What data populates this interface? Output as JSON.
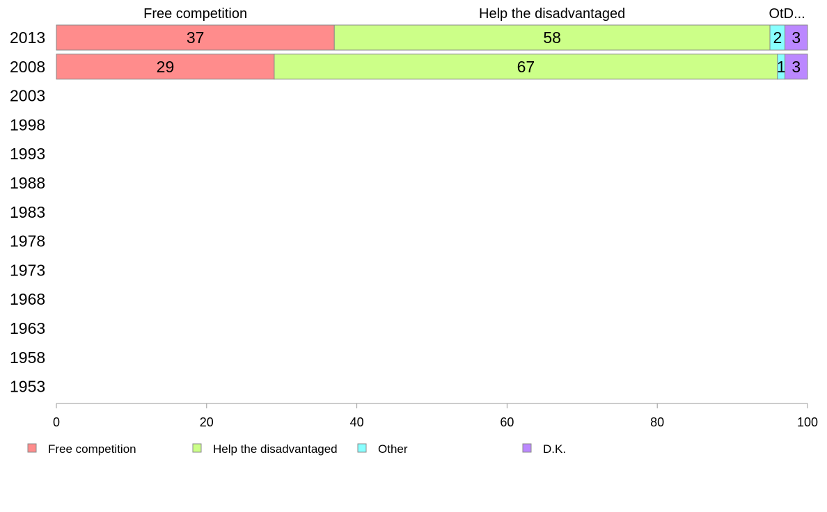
{
  "chart_data": {
    "type": "bar",
    "orientation": "horizontal",
    "stacked": true,
    "categories": [
      "2013",
      "2008",
      "2003",
      "1998",
      "1993",
      "1988",
      "1983",
      "1978",
      "1973",
      "1968",
      "1963",
      "1958",
      "1953"
    ],
    "series": [
      {
        "name": "Free competition",
        "color": "#ff8c8c",
        "values": [
          37,
          29,
          null,
          null,
          null,
          null,
          null,
          null,
          null,
          null,
          null,
          null,
          null
        ]
      },
      {
        "name": "Help the disadvantaged",
        "color": "#ccff88",
        "values": [
          58,
          67,
          null,
          null,
          null,
          null,
          null,
          null,
          null,
          null,
          null,
          null,
          null
        ]
      },
      {
        "name": "Other",
        "color": "#88ffff",
        "values": [
          2,
          1,
          null,
          null,
          null,
          null,
          null,
          null,
          null,
          null,
          null,
          null,
          null
        ]
      },
      {
        "name": "D.K.",
        "color": "#bb88ff",
        "values": [
          3,
          3,
          null,
          null,
          null,
          null,
          null,
          null,
          null,
          null,
          null,
          null,
          null
        ]
      }
    ],
    "column_headers": [
      "Free competition",
      "Help the disadvantaged",
      "Ot",
      "D..."
    ],
    "xlim": [
      0,
      100
    ],
    "xticks": [
      0,
      20,
      40,
      60,
      80,
      100
    ],
    "grid": false,
    "legend_position": "bottom"
  }
}
